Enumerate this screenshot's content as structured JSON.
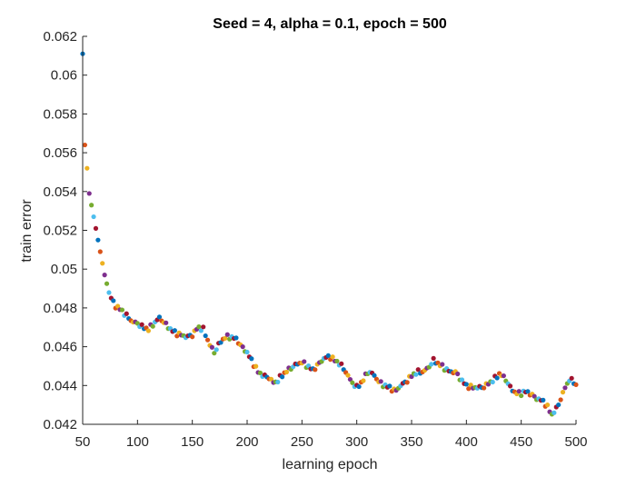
{
  "chart_data": {
    "type": "scatter",
    "title": "Seed = 4, alpha = 0.1, epoch = 500",
    "xlabel": "learning epoch",
    "ylabel": "train error",
    "xlim": [
      50,
      500
    ],
    "ylim": [
      0.042,
      0.062
    ],
    "xticks": [
      50,
      100,
      150,
      200,
      250,
      300,
      350,
      400,
      450,
      500
    ],
    "yticks": [
      0.042,
      0.044,
      0.046,
      0.048,
      0.05,
      0.052,
      0.054,
      0.056,
      0.058,
      0.06,
      0.062
    ],
    "xtick_labels": [
      "50",
      "100",
      "150",
      "200",
      "250",
      "300",
      "350",
      "400",
      "450",
      "500"
    ],
    "ytick_labels": [
      "0.042",
      "0.044",
      "0.046",
      "0.048",
      "0.05",
      "0.052",
      "0.054",
      "0.056",
      "0.058",
      "0.06",
      "0.062"
    ],
    "grid": false,
    "colors": [
      "#0072BD",
      "#D95319",
      "#EDB120",
      "#7E2F8E",
      "#77AC30",
      "#4DBEEE",
      "#A2142F"
    ],
    "curve_knots": {
      "x": [
        50,
        52,
        54,
        56,
        58,
        60,
        62,
        64,
        66,
        68,
        70,
        75,
        80,
        85,
        90,
        95,
        100,
        105,
        110,
        115,
        120,
        125,
        130,
        135,
        140,
        145,
        150,
        155,
        160,
        165,
        170,
        175,
        180,
        185,
        190,
        195,
        200,
        205,
        210,
        215,
        220,
        225,
        230,
        235,
        240,
        245,
        250,
        255,
        260,
        265,
        270,
        275,
        280,
        285,
        290,
        295,
        300,
        305,
        310,
        315,
        320,
        325,
        330,
        335,
        340,
        345,
        350,
        355,
        360,
        365,
        370,
        375,
        380,
        385,
        390,
        395,
        400,
        405,
        410,
        415,
        420,
        425,
        430,
        435,
        440,
        445,
        450,
        455,
        460,
        465,
        470,
        475,
        478,
        482,
        486,
        490,
        494,
        498,
        500
      ],
      "y": [
        0.0611,
        0.0564,
        0.0552,
        0.0539,
        0.0533,
        0.0527,
        0.0521,
        0.0515,
        0.0509,
        0.0503,
        0.0497,
        0.0486,
        0.0481,
        0.0479,
        0.0476,
        0.0473,
        0.0472,
        0.047,
        0.0469,
        0.0472,
        0.0475,
        0.0472,
        0.0469,
        0.0467,
        0.0466,
        0.0465,
        0.0466,
        0.047,
        0.0469,
        0.0462,
        0.0457,
        0.0462,
        0.0465,
        0.0465,
        0.0464,
        0.046,
        0.0457,
        0.0452,
        0.0447,
        0.0445,
        0.0444,
        0.0441,
        0.0444,
        0.0447,
        0.0449,
        0.0451,
        0.0452,
        0.045,
        0.0448,
        0.0451,
        0.0454,
        0.0455,
        0.0453,
        0.0451,
        0.0447,
        0.0442,
        0.0439,
        0.0442,
        0.0447,
        0.0446,
        0.0442,
        0.044,
        0.0439,
        0.0437,
        0.044,
        0.0442,
        0.0445,
        0.0447,
        0.0447,
        0.0449,
        0.0453,
        0.0451,
        0.0449,
        0.0447,
        0.0447,
        0.0443,
        0.044,
        0.0439,
        0.0439,
        0.0439,
        0.0441,
        0.0443,
        0.0446,
        0.0444,
        0.0439,
        0.0436,
        0.0436,
        0.0437,
        0.0435,
        0.0433,
        0.0432,
        0.0428,
        0.0425,
        0.0428,
        0.0433,
        0.0439,
        0.0443,
        0.0442,
        0.044
      ]
    },
    "point_step": 2
  }
}
